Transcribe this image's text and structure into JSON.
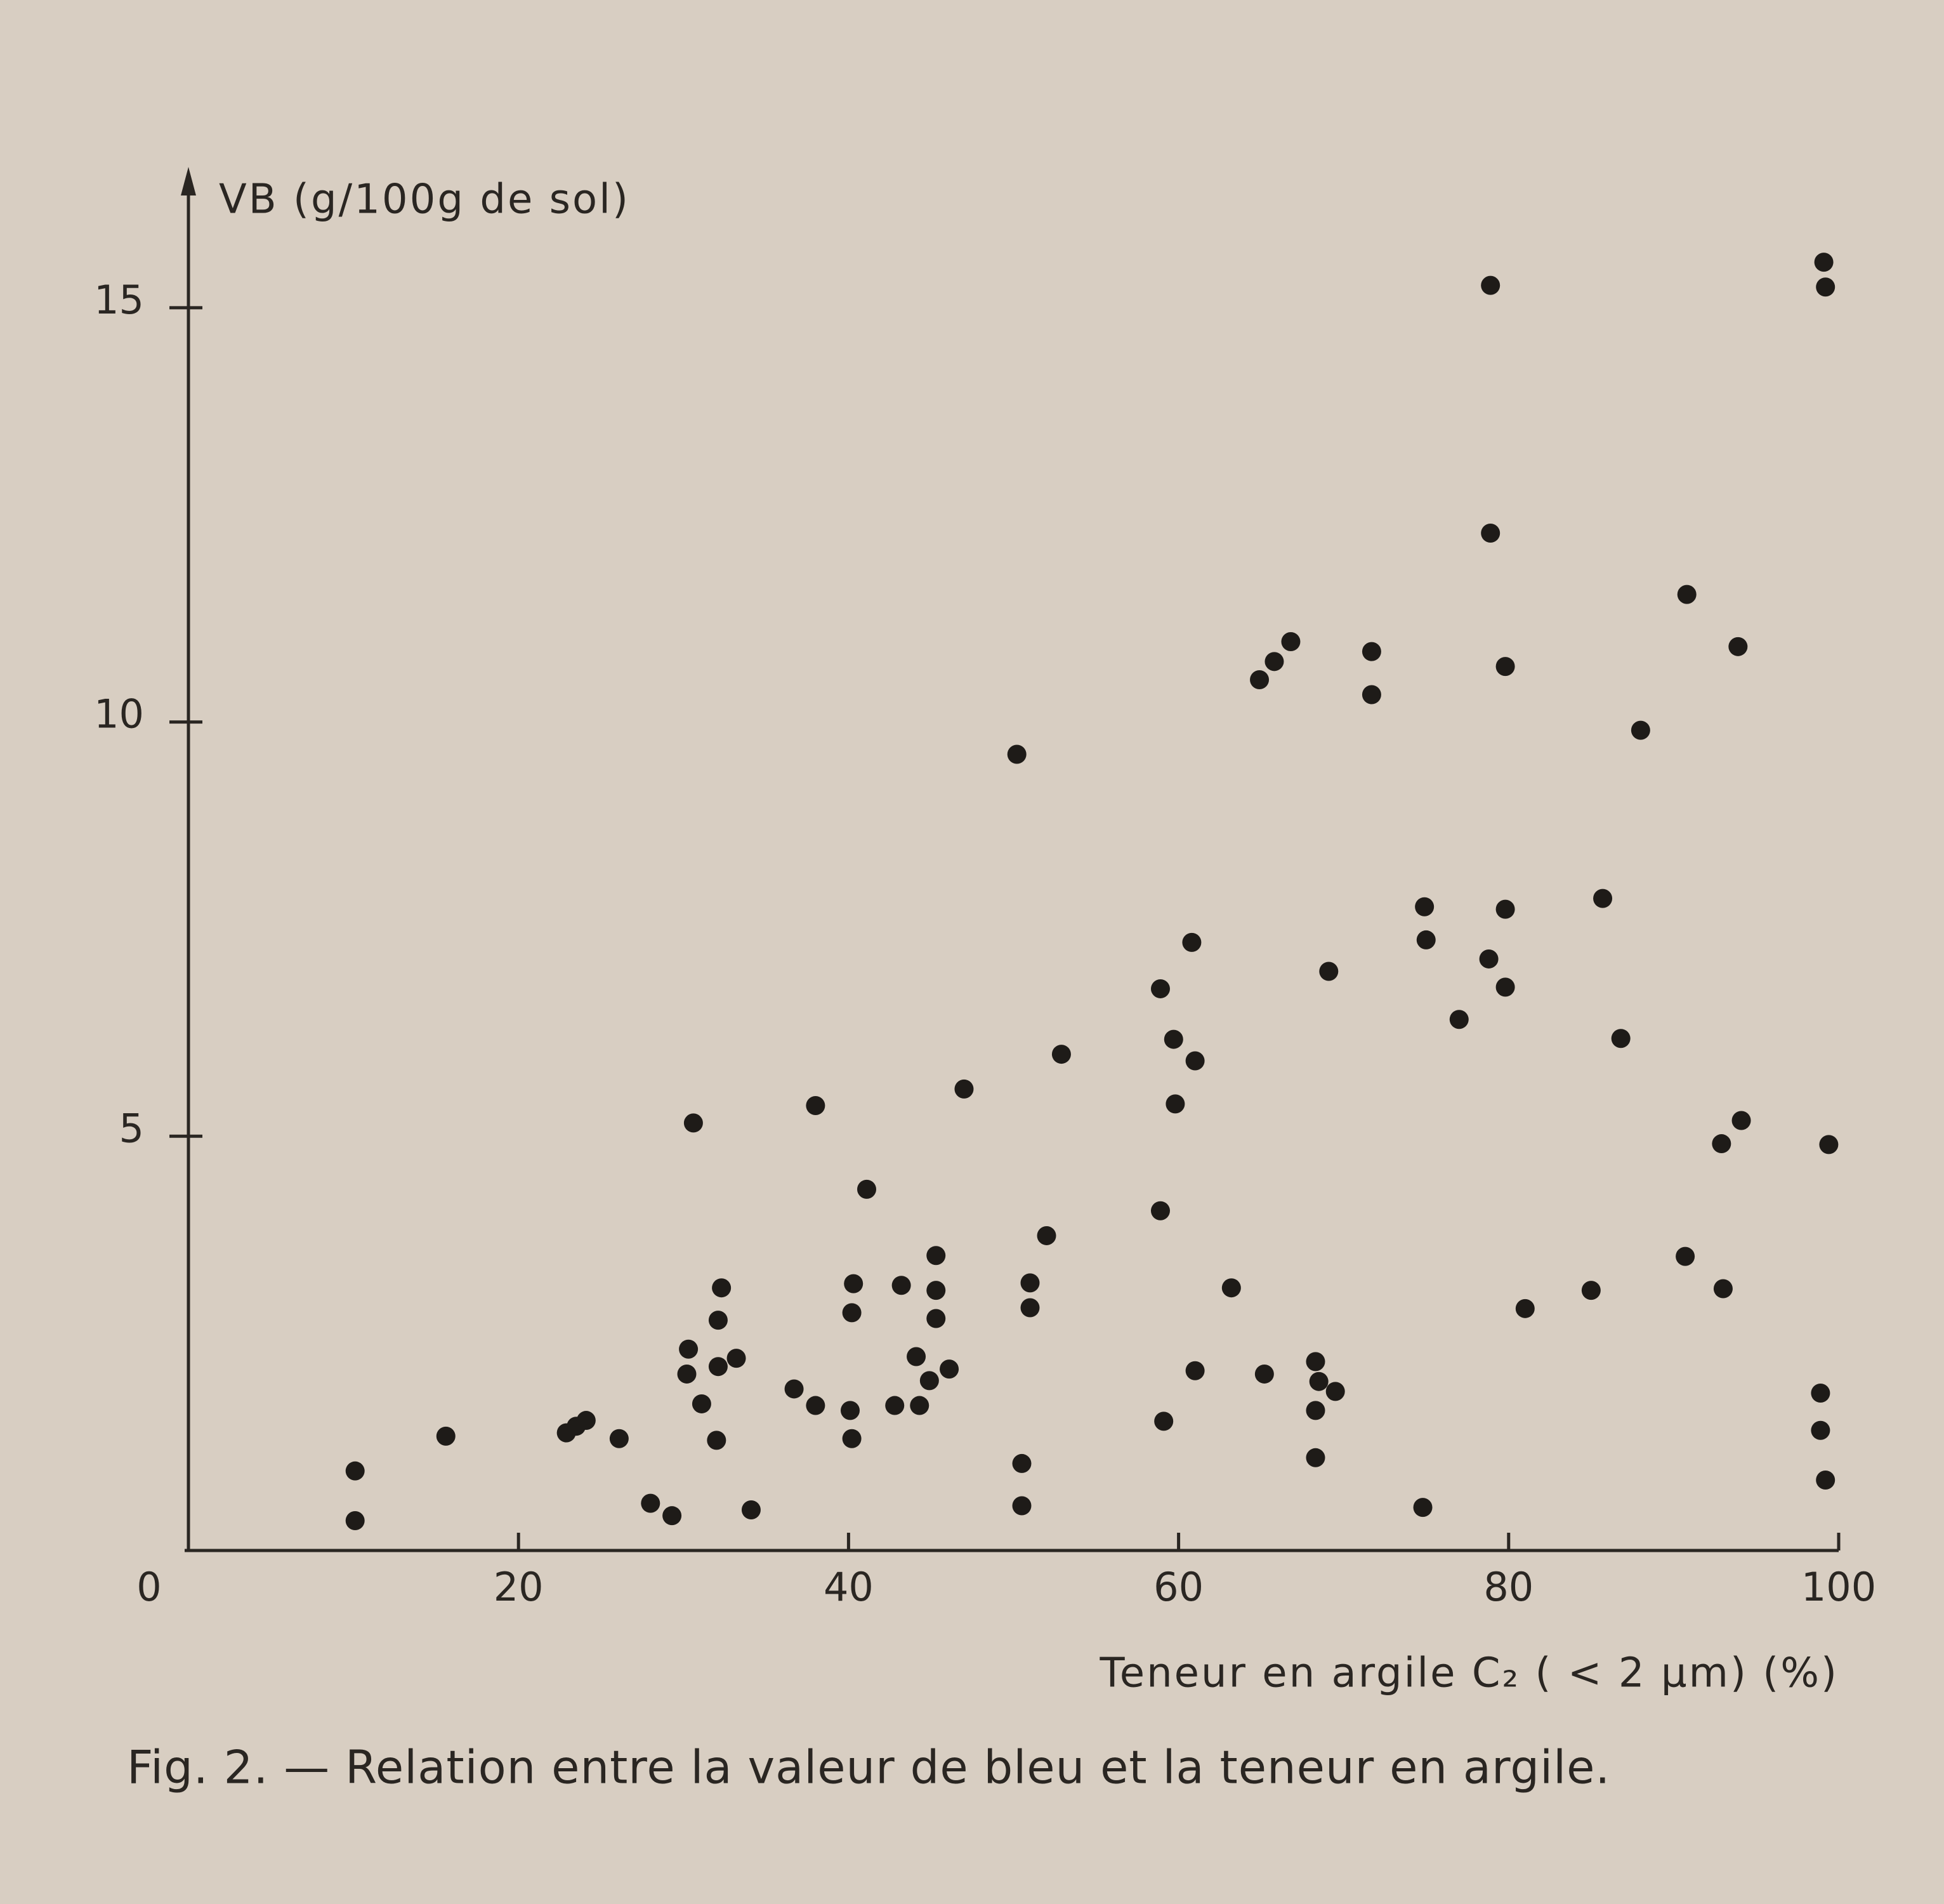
{
  "chart_data": {
    "type": "scatter",
    "y_label": "VB (g/100g de sol)",
    "x_label": "Teneur en argile C₂ ( < 2 µm) (%)",
    "caption": "Fig. 2. — Relation entre la valeur de bleu et la teneur en argile.",
    "color": "#1e1b18",
    "xlim": [
      0,
      100
    ],
    "ylim": [
      0,
      16.7
    ],
    "xticks": [
      0,
      20,
      40,
      60,
      80,
      100
    ],
    "yticks": [
      5,
      10,
      15
    ],
    "x": [
      10.1,
      10.1,
      15.6,
      22.9,
      23.5,
      24.1,
      26.1,
      28.0,
      29.3,
      30.6,
      30.3,
      30.2,
      31.1,
      32.0,
      32.3,
      32.1,
      32.1,
      33.2,
      34.1,
      36.7,
      38.0,
      38.0,
      40.1,
      40.2,
      40.3,
      40.2,
      41.1,
      42.8,
      43.2,
      44.3,
      44.1,
      44.9,
      45.3,
      45.3,
      45.3,
      46.1,
      47.0,
      50.2,
      50.5,
      50.5,
      51.0,
      51.0,
      52.0,
      52.9,
      58.9,
      59.1,
      58.9,
      59.7,
      59.8,
      60.8,
      61.0,
      61.0,
      63.2,
      64.9,
      65.8,
      66.8,
      65.2,
      68.3,
      68.5,
      68.3,
      68.3,
      69.5,
      69.1,
      71.7,
      71.7,
      74.8,
      74.9,
      75.0,
      77.0,
      78.8,
      78.9,
      78.9,
      79.8,
      79.8,
      79.8,
      81.0,
      85.0,
      85.7,
      86.8,
      88.0,
      90.8,
      90.7,
      93.0,
      92.9,
      94.1,
      93.9,
      99.1,
      99.2,
      99.4,
      98.9,
      98.9,
      99.2
    ],
    "values": [
      0.96,
      0.36,
      1.38,
      1.42,
      1.5,
      1.57,
      1.35,
      0.57,
      0.42,
      5.16,
      2.43,
      2.13,
      1.77,
      1.33,
      3.17,
      2.78,
      2.22,
      2.32,
      0.49,
      1.95,
      1.75,
      5.37,
      1.69,
      1.35,
      3.22,
      2.87,
      4.36,
      1.75,
      3.2,
      1.75,
      2.34,
      2.05,
      3.14,
      2.8,
      3.56,
      2.19,
      5.57,
      9.61,
      1.05,
      0.54,
      3.23,
      2.93,
      3.8,
      5.99,
      4.1,
      1.56,
      6.78,
      6.17,
      5.39,
      7.34,
      5.91,
      2.17,
      3.17,
      10.51,
      10.73,
      10.97,
      2.13,
      2.28,
      2.04,
      1.69,
      1.12,
      1.92,
      6.99,
      10.85,
      10.33,
      0.52,
      7.77,
      7.37,
      6.41,
      7.14,
      15.27,
      12.28,
      10.67,
      7.74,
      6.8,
      2.92,
      3.14,
      7.87,
      6.18,
      9.9,
      11.54,
      3.55,
      3.16,
      4.91,
      5.19,
      10.91,
      15.55,
      15.25,
      4.9,
      1.9,
      1.45,
      0.85
    ]
  }
}
